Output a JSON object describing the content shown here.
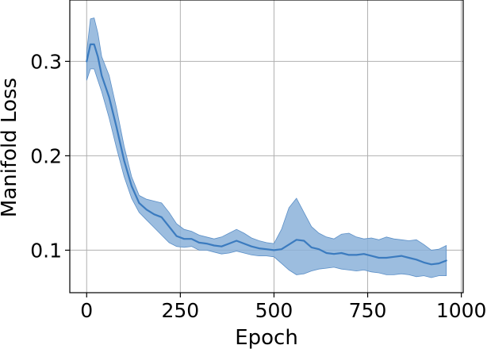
{
  "chart_data": {
    "type": "line",
    "xlabel": "Epoch",
    "ylabel": "Manifold Loss",
    "xlim": [
      -45,
      1005
    ],
    "ylim": [
      0.055,
      0.365
    ],
    "xticks": [
      0,
      250,
      500,
      750,
      1000
    ],
    "xtick_labels": [
      "0",
      "250",
      "500",
      "750",
      "1000"
    ],
    "yticks": [
      0.1,
      0.2,
      0.3
    ],
    "ytick_labels": [
      "0.1",
      "0.2",
      "0.3"
    ],
    "grid": true,
    "series": [
      {
        "color": "#3b7bbf",
        "band_color": "#8bb2d9",
        "x": [
          0,
          10,
          20,
          30,
          40,
          60,
          80,
          100,
          120,
          140,
          160,
          180,
          200,
          220,
          240,
          260,
          280,
          300,
          320,
          340,
          360,
          380,
          400,
          420,
          440,
          460,
          480,
          500,
          520,
          540,
          560,
          580,
          600,
          620,
          640,
          660,
          680,
          700,
          720,
          740,
          760,
          780,
          800,
          820,
          840,
          860,
          880,
          900,
          920,
          940,
          960
        ],
        "mean": [
          0.3,
          0.318,
          0.318,
          0.305,
          0.285,
          0.262,
          0.23,
          0.195,
          0.168,
          0.15,
          0.143,
          0.138,
          0.135,
          0.125,
          0.115,
          0.112,
          0.112,
          0.108,
          0.107,
          0.105,
          0.104,
          0.107,
          0.11,
          0.107,
          0.104,
          0.102,
          0.101,
          0.1,
          0.101,
          0.106,
          0.111,
          0.11,
          0.103,
          0.101,
          0.097,
          0.096,
          0.097,
          0.095,
          0.095,
          0.096,
          0.094,
          0.092,
          0.092,
          0.093,
          0.094,
          0.092,
          0.09,
          0.087,
          0.085,
          0.086,
          0.089
        ],
        "upper": [
          0.31,
          0.345,
          0.346,
          0.33,
          0.305,
          0.285,
          0.25,
          0.21,
          0.178,
          0.158,
          0.154,
          0.152,
          0.15,
          0.14,
          0.128,
          0.122,
          0.12,
          0.116,
          0.114,
          0.112,
          0.114,
          0.118,
          0.122,
          0.118,
          0.113,
          0.11,
          0.108,
          0.107,
          0.122,
          0.145,
          0.155,
          0.14,
          0.125,
          0.118,
          0.114,
          0.112,
          0.117,
          0.118,
          0.114,
          0.112,
          0.113,
          0.111,
          0.114,
          0.112,
          0.111,
          0.11,
          0.111,
          0.106,
          0.1,
          0.101,
          0.105
        ],
        "lower": [
          0.28,
          0.292,
          0.292,
          0.28,
          0.268,
          0.24,
          0.208,
          0.178,
          0.155,
          0.14,
          0.132,
          0.124,
          0.116,
          0.108,
          0.104,
          0.103,
          0.104,
          0.1,
          0.1,
          0.098,
          0.096,
          0.097,
          0.099,
          0.097,
          0.095,
          0.094,
          0.094,
          0.093,
          0.086,
          0.079,
          0.074,
          0.075,
          0.078,
          0.08,
          0.081,
          0.082,
          0.08,
          0.079,
          0.078,
          0.079,
          0.077,
          0.076,
          0.074,
          0.074,
          0.075,
          0.074,
          0.072,
          0.073,
          0.071,
          0.073,
          0.073
        ]
      }
    ]
  }
}
